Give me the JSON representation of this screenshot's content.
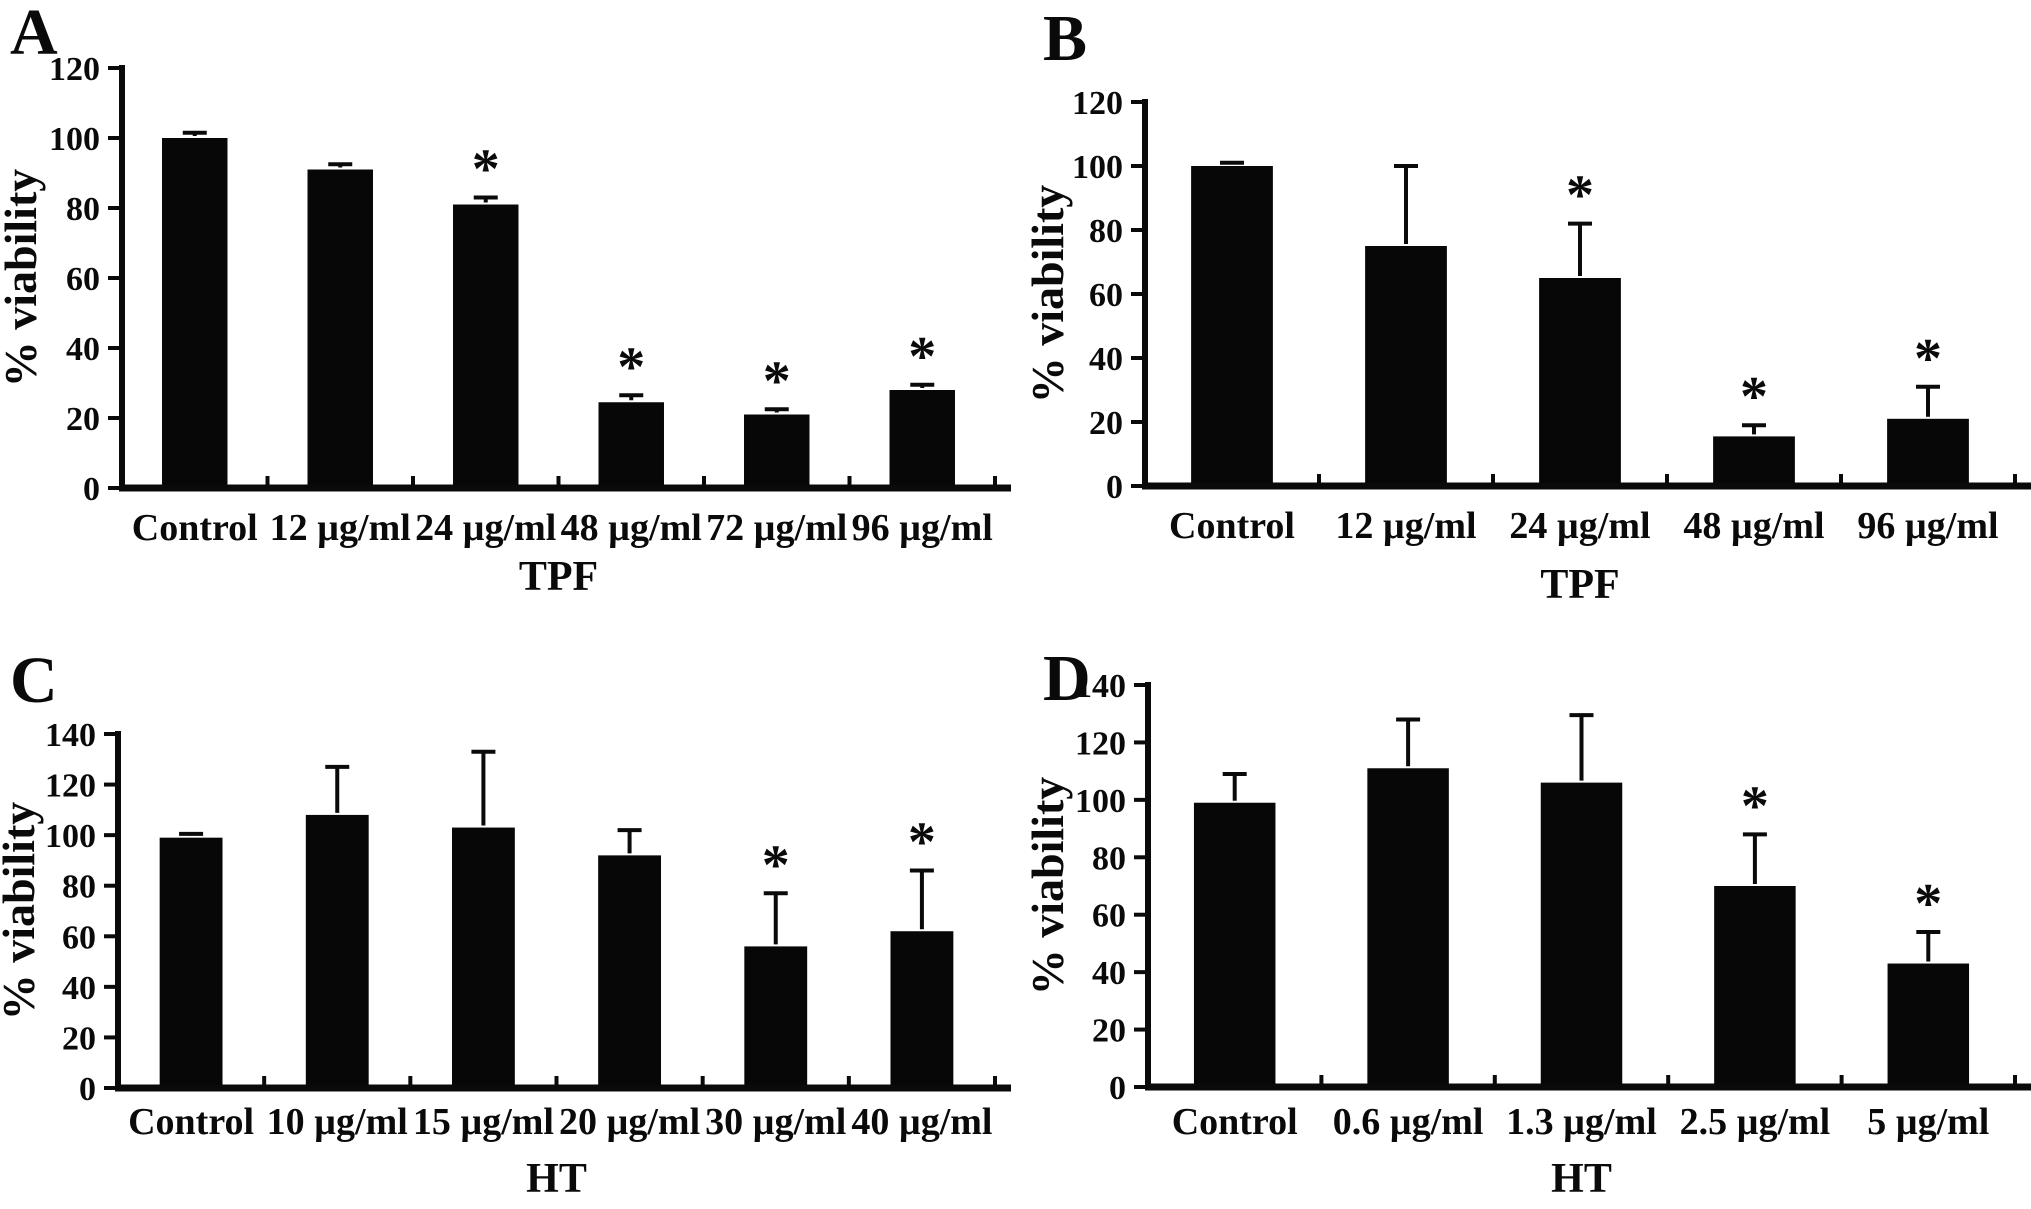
{
  "figure": {
    "background": "#ffffff",
    "bar_color": "#070707",
    "axis_color": "#0a0a0a",
    "sig_marker": "*"
  },
  "chart_data": [
    {
      "panel": "A",
      "type": "bar",
      "xlabel": "TPF",
      "ylabel": "% viability",
      "ylim": [
        0,
        120
      ],
      "yticks": [
        0,
        20,
        40,
        60,
        80,
        100,
        120
      ],
      "grid": false,
      "legend": "none",
      "categories": [
        "Control",
        "12 µg/ml",
        "24 µg/ml",
        "48 µg/ml",
        "72 µg/ml",
        "96 µg/ml"
      ],
      "values": [
        100,
        91,
        81,
        24.5,
        21,
        28
      ],
      "errors": [
        1.5,
        1.5,
        2,
        2,
        1.5,
        1.5
      ],
      "significant": [
        false,
        false,
        true,
        true,
        true,
        true
      ]
    },
    {
      "panel": "B",
      "type": "bar",
      "xlabel": "TPF",
      "ylabel": "% viability",
      "ylim": [
        0,
        120
      ],
      "yticks": [
        0,
        20,
        40,
        60,
        80,
        100,
        120
      ],
      "grid": false,
      "legend": "none",
      "categories": [
        "Control",
        "12 µg/ml",
        "24 µg/ml",
        "48 µg/ml",
        "96 µg/ml"
      ],
      "values": [
        100,
        75,
        65,
        15.5,
        21
      ],
      "errors": [
        1,
        25,
        17,
        3.5,
        10
      ],
      "significant": [
        false,
        false,
        true,
        true,
        true
      ]
    },
    {
      "panel": "C",
      "type": "bar",
      "xlabel": "HT",
      "ylabel": "% viability",
      "ylim": [
        0,
        140
      ],
      "yticks": [
        0,
        20,
        40,
        60,
        80,
        100,
        120,
        140
      ],
      "grid": false,
      "legend": "none",
      "categories": [
        "Control",
        "10 µg/ml",
        "15 µg/ml",
        "20 µg/ml",
        "30 µg/ml",
        "40 µg/ml"
      ],
      "values": [
        99,
        108,
        103,
        92,
        56,
        62
      ],
      "errors": [
        1.5,
        19,
        30,
        10,
        21,
        24
      ],
      "significant": [
        false,
        false,
        false,
        false,
        true,
        true
      ]
    },
    {
      "panel": "D",
      "type": "bar",
      "xlabel": "HT",
      "ylabel": "% viability",
      "ylim": [
        0,
        140
      ],
      "yticks": [
        0,
        20,
        40,
        60,
        80,
        100,
        120,
        140
      ],
      "grid": false,
      "legend": "none",
      "categories": [
        "Control",
        "0.6 µg/ml",
        "1.3 µg/ml",
        "2.5 µg/ml",
        "5 µg/ml"
      ],
      "values": [
        99,
        111,
        106,
        70,
        43
      ],
      "errors": [
        10,
        17,
        23.5,
        18,
        11
      ],
      "significant": [
        false,
        false,
        false,
        true,
        true
      ]
    }
  ]
}
